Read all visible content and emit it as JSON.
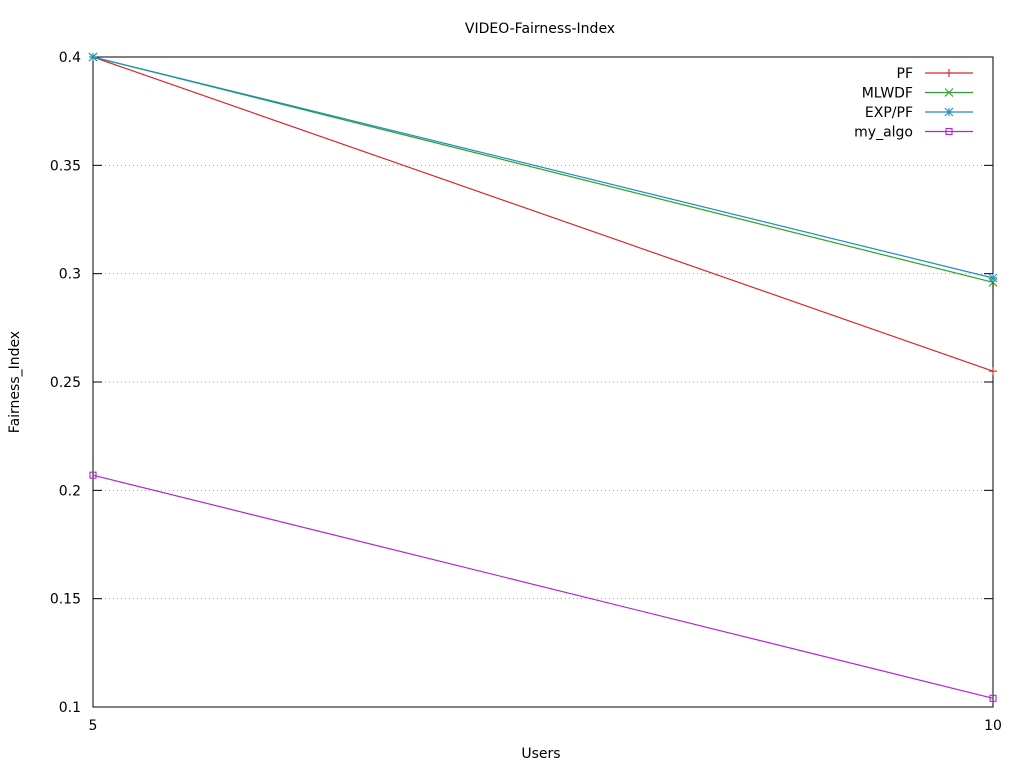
{
  "chart_data": {
    "type": "line",
    "title": "VIDEO-Fairness-Index",
    "xlabel": "Users",
    "ylabel": "Fairness_Index",
    "x": [
      5,
      10
    ],
    "xlim": [
      5,
      10
    ],
    "ylim": [
      0.1,
      0.4
    ],
    "xticks": [
      "5",
      "10"
    ],
    "yticks": [
      "0.1",
      "0.15",
      "0.2",
      "0.25",
      "0.3",
      "0.35",
      "0.4"
    ],
    "ytick_values": [
      0.1,
      0.15,
      0.2,
      0.25,
      0.3,
      0.35,
      0.4
    ],
    "grid": "horizontal-dotted",
    "legend_position": "top-right",
    "series": [
      {
        "name": "PF",
        "values": [
          0.4,
          0.255
        ],
        "color": "#d62728",
        "marker": "plus"
      },
      {
        "name": "MLWDF",
        "values": [
          0.4,
          0.296
        ],
        "color": "#2ca02c",
        "marker": "cross"
      },
      {
        "name": "EXP/PF",
        "values": [
          0.4,
          0.298
        ],
        "color": "#1f8fbf",
        "marker": "star"
      },
      {
        "name": "my_algo",
        "values": [
          0.207,
          0.104
        ],
        "color": "#b026d0",
        "marker": "square"
      }
    ]
  }
}
